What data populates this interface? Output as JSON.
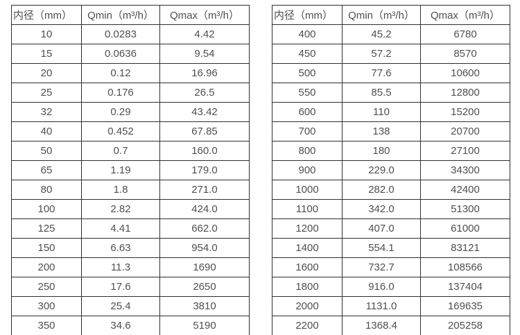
{
  "colors": {
    "table_border": "#2e2e2e",
    "table_text": "#4f4f4f",
    "background": "#ffffff"
  },
  "tables": [
    {
      "id": "left",
      "headers": [
        "内径（mm）",
        "Qmin（m³/h）",
        "Qmax（m³/h）"
      ],
      "rows": [
        [
          "10",
          "0.0283",
          "4.42"
        ],
        [
          "15",
          "0.0636",
          "9.54"
        ],
        [
          "20",
          "0.12",
          "16.96"
        ],
        [
          "25",
          "0.176",
          "26.5"
        ],
        [
          "32",
          "0.29",
          "43.42"
        ],
        [
          "40",
          "0.452",
          "67.85"
        ],
        [
          "50",
          "0.7",
          "160.0"
        ],
        [
          "65",
          "1.19",
          "179.0"
        ],
        [
          "80",
          "1.8",
          "271.0"
        ],
        [
          "100",
          "2.82",
          "424.0"
        ],
        [
          "125",
          "4.41",
          "662.0"
        ],
        [
          "150",
          "6.63",
          "954.0"
        ],
        [
          "200",
          "11.3",
          "1690"
        ],
        [
          "250",
          "17.6",
          "2650"
        ],
        [
          "300",
          "25.4",
          "3810"
        ],
        [
          "350",
          "34.6",
          "5190"
        ]
      ]
    },
    {
      "id": "right",
      "headers": [
        "内径（mm）",
        "Qmin（m³/h）",
        "Qmax（m³/h）"
      ],
      "rows": [
        [
          "400",
          "45.2",
          "6780"
        ],
        [
          "450",
          "57.2",
          "8570"
        ],
        [
          "500",
          "77.6",
          "10600"
        ],
        [
          "550",
          "85.5",
          "12800"
        ],
        [
          "600",
          "110",
          "15200"
        ],
        [
          "700",
          "138",
          "20700"
        ],
        [
          "800",
          "180",
          "27100"
        ],
        [
          "900",
          "229.0",
          "34300"
        ],
        [
          "1000",
          "282.0",
          "42400"
        ],
        [
          "1100",
          "342.0",
          "51300"
        ],
        [
          "1200",
          "407.0",
          "61000"
        ],
        [
          "1400",
          "554.1",
          "83121"
        ],
        [
          "1600",
          "732.7",
          "108566"
        ],
        [
          "1800",
          "916.0",
          "137404"
        ],
        [
          "2000",
          "1131.0",
          "169635"
        ],
        [
          "2200",
          "1368.4",
          "205258"
        ]
      ]
    }
  ]
}
